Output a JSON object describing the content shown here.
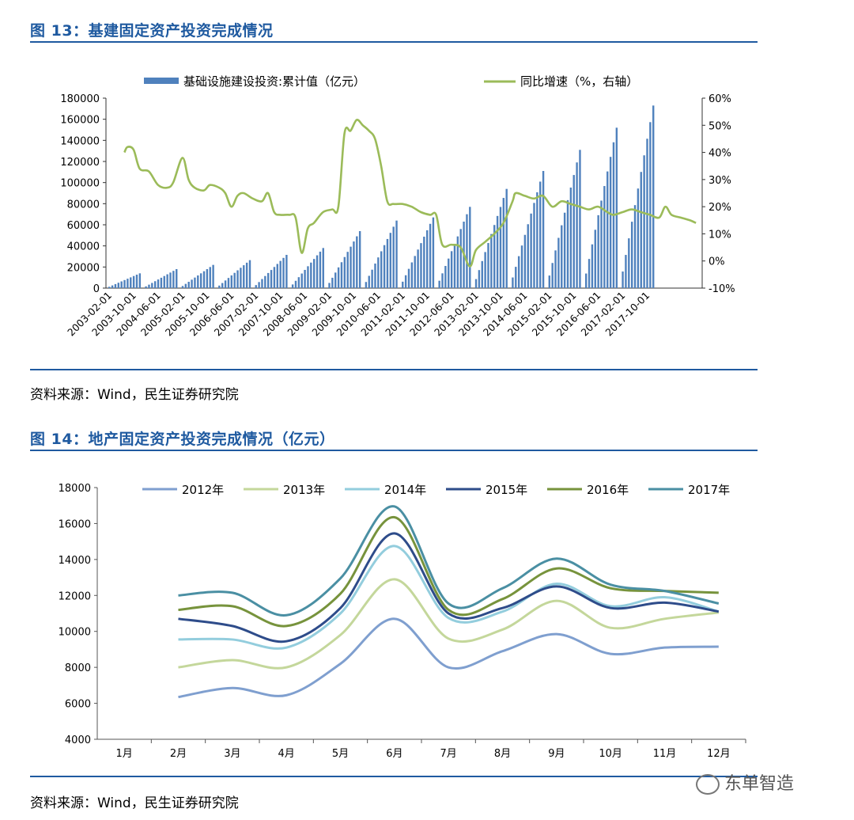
{
  "figure13": {
    "title": "图 13：基建固定资产投资完成情况",
    "source": "资料来源：Wind，民生证券研究院"
  },
  "figure14": {
    "title": "图 14：地产固定资产投资完成情况（亿元）",
    "source": "资料来源：Wind，民生证券研究院"
  },
  "watermark": {
    "text": "东单智造",
    "icon": "wechat-icon"
  },
  "chart_data": [
    {
      "type": "bar+line",
      "legend_position": "top",
      "grid": false,
      "series": [
        {
          "name": "基础设施建设投资:累计值（亿元）",
          "kind": "bar",
          "color": "#4f81bd",
          "axis": "left"
        },
        {
          "name": "同比增速（%，右轴）",
          "kind": "line",
          "color": "#9bbb59",
          "axis": "right"
        }
      ],
      "x_tick_labels": [
        "2003-02-01",
        "2003-10-01",
        "2004-06-01",
        "2005-02-01",
        "2005-10-01",
        "2006-06-01",
        "2007-02-01",
        "2007-10-01",
        "2008-06-01",
        "2009-02-01",
        "2009-10-01",
        "2010-06-01",
        "2011-02-01",
        "2011-10-01",
        "2012-06-01",
        "2013-02-01",
        "2013-10-01",
        "2014-06-01",
        "2015-02-01",
        "2015-10-01",
        "2016-06-01",
        "2017-02-01",
        "2017-10-01"
      ],
      "y_left_ticks": [
        "0",
        "20000",
        "40000",
        "60000",
        "80000",
        "100000",
        "120000",
        "140000",
        "160000",
        "180000"
      ],
      "y_left_lim": [
        0,
        180000
      ],
      "y_right_ticks": [
        "-10%",
        "0%",
        "10%",
        "20%",
        "30%",
        "40%",
        "50%",
        "60%"
      ],
      "y_right_lim": [
        -10,
        60
      ],
      "bar_years": [
        {
          "year": 2003,
          "start_month": 2,
          "end": 14000
        },
        {
          "year": 2004,
          "start_month": 2,
          "end": 18000
        },
        {
          "year": 2005,
          "start_month": 2,
          "end": 22000
        },
        {
          "year": 2006,
          "start_month": 2,
          "end": 26500
        },
        {
          "year": 2007,
          "start_month": 2,
          "end": 31500
        },
        {
          "year": 2008,
          "start_month": 2,
          "end": 38000
        },
        {
          "year": 2009,
          "start_month": 2,
          "end": 54000
        },
        {
          "year": 2010,
          "start_month": 2,
          "end": 64000
        },
        {
          "year": 2011,
          "start_month": 2,
          "end": 67000
        },
        {
          "year": 2012,
          "start_month": 2,
          "end": 77000
        },
        {
          "year": 2013,
          "start_month": 2,
          "end": 94000
        },
        {
          "year": 2014,
          "start_month": 2,
          "end": 111000
        },
        {
          "year": 2015,
          "start_month": 2,
          "end": 131000
        },
        {
          "year": 2016,
          "start_month": 2,
          "end": 152000
        },
        {
          "year": 2017,
          "start_month": 2,
          "end": 173000
        }
      ],
      "growth_points": [
        [
          "2003-07",
          40
        ],
        [
          "2003-08",
          42
        ],
        [
          "2003-10",
          41
        ],
        [
          "2003-12",
          34
        ],
        [
          "2004-03",
          33
        ],
        [
          "2004-06",
          28
        ],
        [
          "2004-09",
          27
        ],
        [
          "2004-11",
          29
        ],
        [
          "2005-02",
          38
        ],
        [
          "2005-04",
          30
        ],
        [
          "2005-06",
          27
        ],
        [
          "2005-09",
          26
        ],
        [
          "2005-11",
          28
        ],
        [
          "2006-02",
          27
        ],
        [
          "2006-04",
          25
        ],
        [
          "2006-06",
          20
        ],
        [
          "2006-08",
          24
        ],
        [
          "2006-10",
          25
        ],
        [
          "2007-01",
          23
        ],
        [
          "2007-04",
          22
        ],
        [
          "2007-06",
          25
        ],
        [
          "2007-08",
          18
        ],
        [
          "2007-10",
          17
        ],
        [
          "2008-01",
          17
        ],
        [
          "2008-03",
          16
        ],
        [
          "2008-05",
          3
        ],
        [
          "2008-07",
          12
        ],
        [
          "2008-09",
          14
        ],
        [
          "2008-12",
          18
        ],
        [
          "2009-03",
          19
        ],
        [
          "2009-05",
          20
        ],
        [
          "2009-07",
          47
        ],
        [
          "2009-09",
          48
        ],
        [
          "2009-11",
          52
        ],
        [
          "2010-01",
          50
        ],
        [
          "2010-03",
          48
        ],
        [
          "2010-05",
          45
        ],
        [
          "2010-07",
          35
        ],
        [
          "2010-09",
          22
        ],
        [
          "2010-11",
          21
        ],
        [
          "2011-02",
          21
        ],
        [
          "2011-05",
          20
        ],
        [
          "2011-08",
          18
        ],
        [
          "2011-11",
          17
        ],
        [
          "2012-01",
          17
        ],
        [
          "2012-03",
          6
        ],
        [
          "2012-06",
          6
        ],
        [
          "2012-09",
          5
        ],
        [
          "2012-12",
          -2
        ],
        [
          "2013-02",
          4
        ],
        [
          "2013-05",
          7
        ],
        [
          "2013-08",
          10
        ],
        [
          "2013-11",
          14
        ],
        [
          "2014-02",
          22
        ],
        [
          "2014-03",
          25
        ],
        [
          "2014-06",
          24
        ],
        [
          "2014-09",
          23
        ],
        [
          "2014-12",
          24
        ],
        [
          "2015-03",
          20
        ],
        [
          "2015-06",
          22
        ],
        [
          "2015-09",
          21
        ],
        [
          "2015-12",
          20
        ],
        [
          "2016-03",
          19
        ],
        [
          "2016-06",
          20
        ],
        [
          "2016-09",
          18
        ],
        [
          "2016-11",
          17
        ],
        [
          "2017-02",
          18
        ],
        [
          "2017-05",
          19
        ],
        [
          "2017-08",
          18
        ],
        [
          "2017-11",
          17
        ],
        [
          "2018-02",
          16
        ],
        [
          "2018-04",
          20
        ],
        [
          "2018-06",
          17
        ],
        [
          "2018-09",
          16
        ],
        [
          "2018-12",
          15
        ],
        [
          "2019-02",
          14
        ]
      ]
    },
    {
      "type": "line",
      "legend_position": "top",
      "grid": false,
      "categories": [
        "1月",
        "2月",
        "3月",
        "4月",
        "5月",
        "6月",
        "7月",
        "8月",
        "9月",
        "10月",
        "11月",
        "12月"
      ],
      "y_ticks": [
        "4000",
        "6000",
        "8000",
        "10000",
        "12000",
        "14000",
        "16000",
        "18000"
      ],
      "ylim": [
        4000,
        18000
      ],
      "series": [
        {
          "name": "2012年",
          "color": "#7f9fcf",
          "values": [
            null,
            6350,
            6850,
            6450,
            8200,
            10700,
            8000,
            8900,
            9850,
            8750,
            9100,
            9150
          ]
        },
        {
          "name": "2013年",
          "color": "#c4d79b",
          "values": [
            null,
            8000,
            8400,
            8000,
            9800,
            12900,
            9600,
            10100,
            11700,
            10200,
            10700,
            11050
          ]
        },
        {
          "name": "2014年",
          "color": "#93cddd",
          "values": [
            null,
            9550,
            9550,
            9100,
            11000,
            14750,
            10750,
            11100,
            12650,
            11400,
            11900,
            11100
          ]
        },
        {
          "name": "2015年",
          "color": "#2e4c8a",
          "values": [
            null,
            10700,
            10300,
            9450,
            11300,
            15450,
            11000,
            11300,
            12500,
            11300,
            11600,
            11100
          ]
        },
        {
          "name": "2016年",
          "color": "#77933c",
          "values": [
            null,
            11200,
            11400,
            10300,
            12100,
            16350,
            11200,
            11800,
            13500,
            12400,
            12250,
            12150
          ]
        },
        {
          "name": "2017年",
          "color": "#4a8fa3",
          "values": [
            null,
            12000,
            12150,
            10900,
            12950,
            16950,
            11550,
            12400,
            14050,
            12600,
            12250,
            11550
          ]
        }
      ]
    }
  ]
}
